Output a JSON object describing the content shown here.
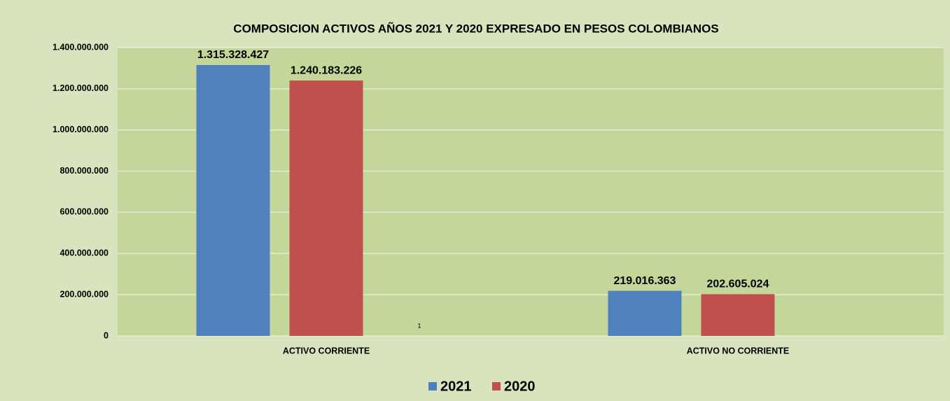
{
  "chart_data": {
    "type": "bar",
    "title": "COMPOSICION ACTIVOS AÑOS 2021 Y 2020 EXPRESADO EN PESOS COLOMBIANOS",
    "categories": [
      "ACTIVO CORRIENTE",
      "ACTIVO NO CORRIENTE"
    ],
    "series": [
      {
        "name": "2021",
        "color": "#4f81bd",
        "values": [
          1315328427,
          219016363
        ],
        "value_labels": [
          "1.315.328.427",
          "219.016.363"
        ]
      },
      {
        "name": "2020",
        "color": "#c0504d",
        "values": [
          1240183226,
          202605024
        ],
        "value_labels": [
          "1.240.183.226",
          "202.605.024"
        ]
      }
    ],
    "annotation": "1",
    "ylim": [
      0,
      1400000000
    ],
    "yticks": [
      0,
      {
        "value": 200000000,
        "label": "200.000.000"
      },
      {
        "value": 400000000,
        "label": "400.000.000"
      },
      {
        "value": 600000000,
        "label": "600.000.000"
      },
      {
        "value": 800000000,
        "label": "800.000.000"
      },
      {
        "value": 1000000000,
        "label": "1.000.000.000"
      },
      {
        "value": 1200000000,
        "label": "1.200.000.000"
      },
      {
        "value": 1400000000,
        "label": "1.400.000.000"
      }
    ],
    "grid": true,
    "legend": "bottom"
  }
}
